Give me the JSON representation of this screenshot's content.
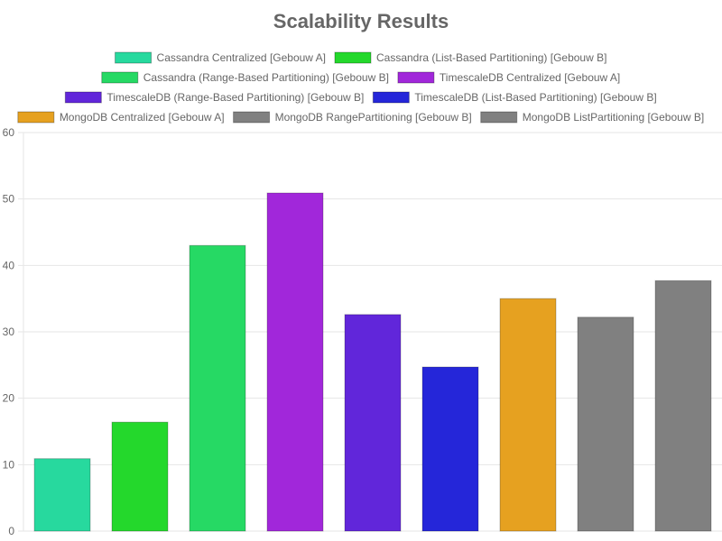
{
  "chart_data": {
    "type": "bar",
    "title": "Scalability Results",
    "xlabel": "",
    "ylabel": "",
    "ylim": [
      0,
      60
    ],
    "yticks": [
      0,
      10,
      20,
      30,
      40,
      50,
      60
    ],
    "grid": true,
    "legend_position": "top",
    "series": [
      {
        "name": "Cassandra Centralized [Gebouw A]",
        "value": 10.9,
        "color": "#27d99e"
      },
      {
        "name": "Cassandra (List-Based Partitioning) [Gebouw B]",
        "value": 16.4,
        "color": "#24d82c"
      },
      {
        "name": "Cassandra (Range-Based Partitioning) [Gebouw B]",
        "value": 43.0,
        "color": "#26d964"
      },
      {
        "name": "TimescaleDB Centralized [Gebouw A]",
        "value": 50.9,
        "color": "#a127da"
      },
      {
        "name": "TimescaleDB (Range-Based Partitioning) [Gebouw B]",
        "value": 32.6,
        "color": "#6126da"
      },
      {
        "name": "TimescaleDB (List-Based Partitioning) [Gebouw B]",
        "value": 24.7,
        "color": "#2526d9"
      },
      {
        "name": "MongoDB Centralized [Gebouw A]",
        "value": 35.0,
        "color": "#e6a120"
      },
      {
        "name": "MongoDB RangePartitioning [Gebouw B]",
        "value": 32.2,
        "color": "#808080"
      },
      {
        "name": "MongoDB ListPartitioning [Gebouw B]",
        "value": 37.7,
        "color": "#808080"
      }
    ]
  }
}
